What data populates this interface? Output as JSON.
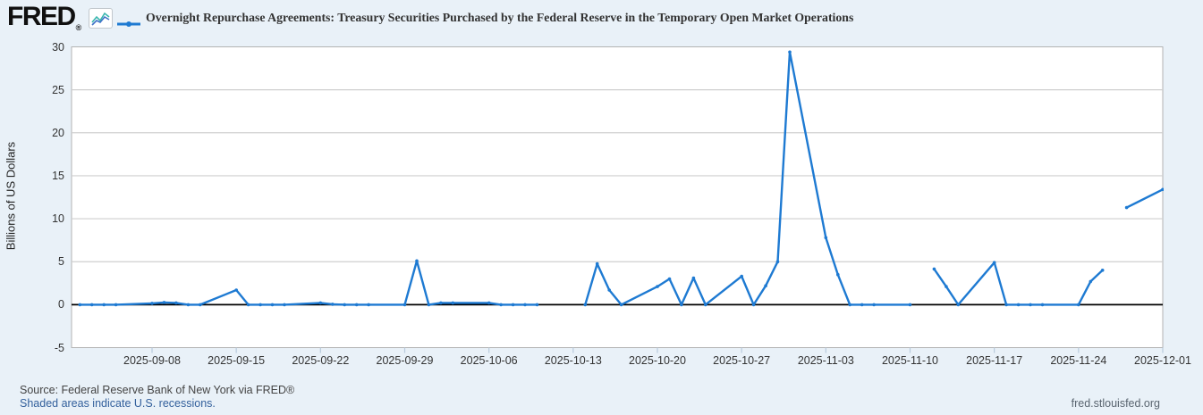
{
  "header": {
    "logo_text": "FRED",
    "logo_reg_mark": "®",
    "title": "Overnight Repurchase Agreements: Treasury Securities Purchased by the Federal Reserve in the Temporary Open Market Operations"
  },
  "y_axis_title": "Billions of US Dollars",
  "footer": {
    "source": "Source: Federal Reserve Bank of New York via FRED®",
    "recession_note": "Shaded areas indicate U.S. recessions.",
    "site": "fred.stlouisfed.org"
  },
  "colors": {
    "background": "#e9f1f8",
    "plot_background": "#ffffff",
    "line": "#1e7ad2",
    "grid": "#cfcfcf",
    "plot_border": "#b3b3b3",
    "zero_line": "#000000",
    "tick": "#b9cbdd",
    "axis_text": "#333333",
    "link": "#33609c"
  },
  "chart_data": {
    "type": "line",
    "title": "Overnight Repurchase Agreements: Treasury Securities Purchased by the Federal Reserve in the Temporary Open Market Operations",
    "xlabel": "",
    "ylabel": "Billions of US Dollars",
    "ylim": [
      -5,
      30
    ],
    "y_ticks": [
      30,
      25,
      20,
      15,
      10,
      5,
      0,
      -5
    ],
    "x_ticks": [
      "2025-09-08",
      "2025-09-15",
      "2025-09-22",
      "2025-09-29",
      "2025-10-06",
      "2025-10-13",
      "2025-10-20",
      "2025-10-27",
      "2025-11-03",
      "2025-11-10",
      "2025-11-17",
      "2025-11-24",
      "2025-12-01"
    ],
    "grid": "horizontal",
    "legend_position": "top-left",
    "notes": "null value = missing observation (holiday), line breaks there",
    "series": [
      {
        "name": "Overnight Repurchase Agreements: Treasury Securities Purchased by the Federal Reserve in the Temporary Open Market Operations",
        "points": [
          [
            "2025-09-02",
            0
          ],
          [
            "2025-09-03",
            0
          ],
          [
            "2025-09-04",
            0
          ],
          [
            "2025-09-05",
            0
          ],
          [
            "2025-09-08",
            0.15
          ],
          [
            "2025-09-09",
            0.25
          ],
          [
            "2025-09-10",
            0.2
          ],
          [
            "2025-09-11",
            0
          ],
          [
            "2025-09-12",
            0
          ],
          [
            "2025-09-15",
            1.7
          ],
          [
            "2025-09-16",
            0
          ],
          [
            "2025-09-17",
            0
          ],
          [
            "2025-09-18",
            0
          ],
          [
            "2025-09-19",
            0
          ],
          [
            "2025-09-22",
            0.2
          ],
          [
            "2025-09-23",
            0.05
          ],
          [
            "2025-09-24",
            0
          ],
          [
            "2025-09-25",
            0
          ],
          [
            "2025-09-26",
            0
          ],
          [
            "2025-09-29",
            0
          ],
          [
            "2025-09-30",
            5.1
          ],
          [
            "2025-10-01",
            0
          ],
          [
            "2025-10-02",
            0.2
          ],
          [
            "2025-10-03",
            0.2
          ],
          [
            "2025-10-06",
            0.2
          ],
          [
            "2025-10-07",
            0
          ],
          [
            "2025-10-08",
            0
          ],
          [
            "2025-10-09",
            0
          ],
          [
            "2025-10-10",
            0
          ],
          [
            "2025-10-13",
            null
          ],
          [
            "2025-10-14",
            0
          ],
          [
            "2025-10-15",
            4.75
          ],
          [
            "2025-10-16",
            1.7
          ],
          [
            "2025-10-17",
            0
          ],
          [
            "2025-10-20",
            2.1
          ],
          [
            "2025-10-21",
            3.0
          ],
          [
            "2025-10-22",
            0
          ],
          [
            "2025-10-23",
            3.1
          ],
          [
            "2025-10-24",
            0
          ],
          [
            "2025-10-27",
            3.3
          ],
          [
            "2025-10-28",
            0
          ],
          [
            "2025-10-29",
            2.2
          ],
          [
            "2025-10-30",
            5.0
          ],
          [
            "2025-10-31",
            29.4
          ],
          [
            "2025-11-03",
            7.8
          ],
          [
            "2025-11-04",
            3.5
          ],
          [
            "2025-11-05",
            0
          ],
          [
            "2025-11-06",
            0
          ],
          [
            "2025-11-07",
            0
          ],
          [
            "2025-11-10",
            0
          ],
          [
            "2025-11-11",
            null
          ],
          [
            "2025-11-12",
            4.15
          ],
          [
            "2025-11-13",
            2.1
          ],
          [
            "2025-11-14",
            0
          ],
          [
            "2025-11-17",
            4.9
          ],
          [
            "2025-11-18",
            0
          ],
          [
            "2025-11-19",
            0
          ],
          [
            "2025-11-20",
            0
          ],
          [
            "2025-11-21",
            0
          ],
          [
            "2025-11-24",
            0
          ],
          [
            "2025-11-25",
            2.7
          ],
          [
            "2025-11-26",
            4.0
          ],
          [
            "2025-11-27",
            null
          ],
          [
            "2025-11-28",
            11.3
          ],
          [
            "2025-12-01",
            13.4
          ]
        ]
      }
    ]
  }
}
